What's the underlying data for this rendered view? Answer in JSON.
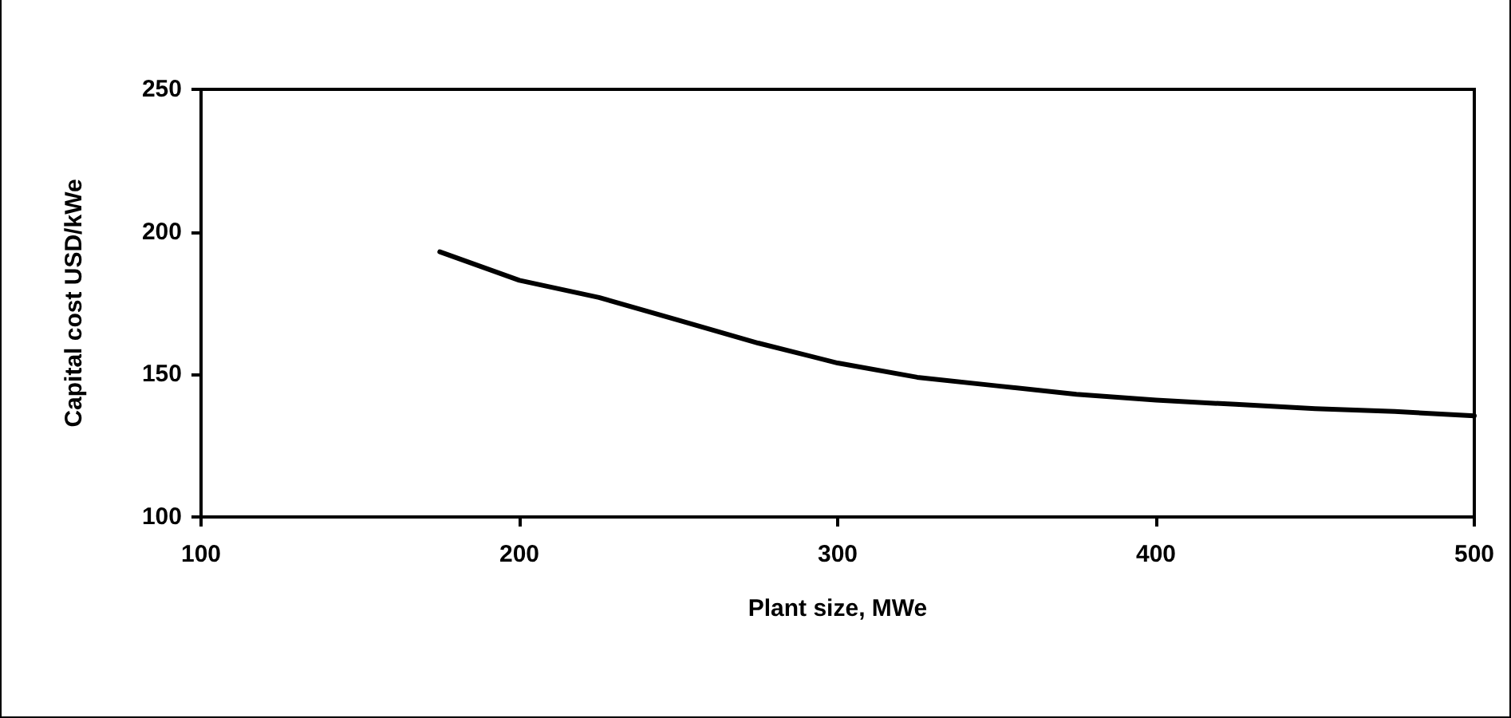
{
  "chart_data": {
    "type": "line",
    "xlabel": "Plant size, MWe",
    "ylabel": "Capital cost USD/kWe",
    "x": [
      175,
      200,
      225,
      250,
      275,
      300,
      325,
      350,
      375,
      400,
      425,
      450,
      475,
      500
    ],
    "series": [
      {
        "color": "#000000",
        "values": [
          193,
          183,
          177,
          169,
          161,
          154,
          149,
          146,
          143,
          141,
          139.5,
          138,
          137,
          135.5
        ]
      }
    ],
    "xlim": [
      100,
      500
    ],
    "xticks": [
      100,
      200,
      300,
      400,
      500
    ],
    "ylim": [
      100,
      250
    ],
    "yticks": [
      100,
      150,
      200,
      250
    ],
    "grid": false,
    "marker": "none",
    "line_style": "solid"
  }
}
